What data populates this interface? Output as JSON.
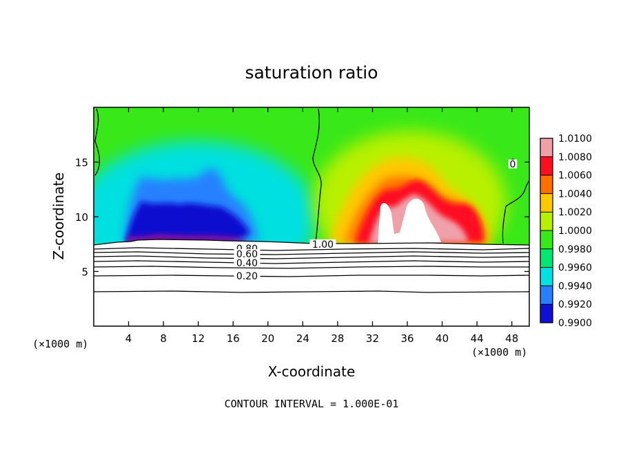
{
  "chart_data": {
    "type": "heatmap",
    "title": "saturation ratio",
    "xlabel": "X-coordinate",
    "ylabel": "Z-coordinate",
    "x_unit_left": "(×1000 m)",
    "x_unit_right": "(×1000 m)",
    "footer": "CONTOUR INTERVAL = 1.000E-01",
    "xlim": [
      0,
      50
    ],
    "ylim": [
      0,
      20
    ],
    "x_ticks": [
      "4",
      "8",
      "12",
      "16",
      "20",
      "24",
      "28",
      "32",
      "36",
      "40",
      "44",
      "48"
    ],
    "y_ticks": [
      "5",
      "10",
      "15"
    ],
    "x_tick_values": [
      4,
      8,
      12,
      16,
      20,
      24,
      28,
      32,
      36,
      40,
      44,
      48
    ],
    "y_tick_values": [
      5,
      10,
      15
    ],
    "colorbar": {
      "labels": [
        "1.0100",
        "1.0080",
        "1.0060",
        "1.0040",
        "1.0020",
        "1.0000",
        "0.9980",
        "0.9960",
        "0.9940",
        "0.9920",
        "0.9900"
      ],
      "values": [
        1.01,
        1.008,
        1.006,
        1.004,
        1.002,
        1.0,
        0.998,
        0.996,
        0.994,
        0.992,
        0.99
      ],
      "colors": [
        "#f0a0a8",
        "#ff1020",
        "#ff7000",
        "#ffc800",
        "#b8f000",
        "#38e818",
        "#00e870",
        "#00e0e0",
        "#2880ff",
        "#1010d0",
        "#8010a0"
      ]
    },
    "contour_labels": [
      {
        "text": "1.00",
        "x": 26.3,
        "z": 7.5
      },
      {
        "text": "0.80",
        "x": 17.6,
        "z": 7.1
      },
      {
        "text": "0.60",
        "x": 17.6,
        "z": 6.6
      },
      {
        "text": "0.40",
        "x": 17.6,
        "z": 5.8
      },
      {
        "text": "0.20",
        "x": 17.6,
        "z": 4.6
      },
      {
        "text": "0",
        "x": 48.1,
        "z": 14.8
      }
    ],
    "contour_levels": [
      0.2,
      0.4,
      0.6,
      0.8,
      1.0
    ],
    "surface_height": 7.5
  }
}
